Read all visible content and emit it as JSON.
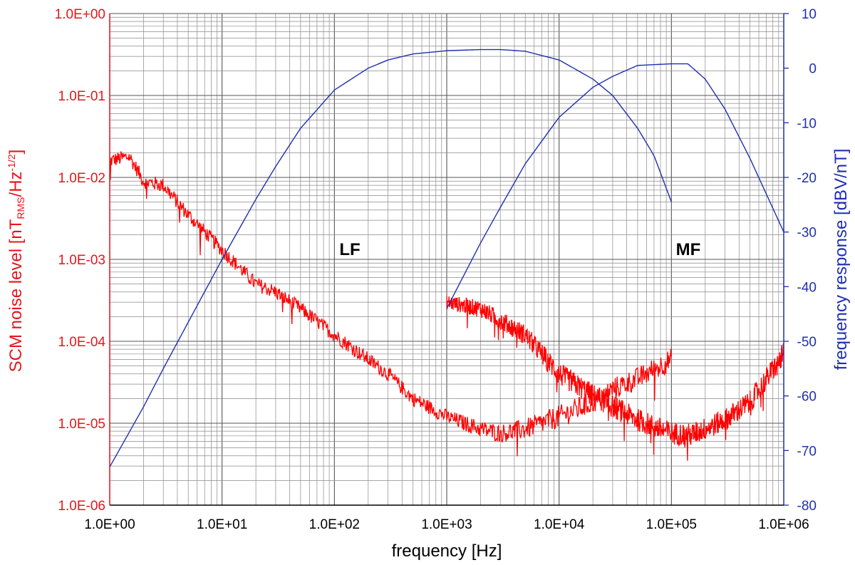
{
  "chart_data": {
    "type": "line",
    "xlabel": "frequency [Hz]",
    "x_scale": "log",
    "xlim": [
      1,
      1000000
    ],
    "x_ticks": [
      "1.0E+00",
      "1.0E+01",
      "1.0E+02",
      "1.0E+03",
      "1.0E+04",
      "1.0E+05",
      "1.0E+06"
    ],
    "ylabel_left": {
      "prefix": "SCM noise level [nT",
      "sub": "RMS",
      "mid": "/Hz",
      "sup": "-1/2",
      "suffix": "]"
    },
    "y_left_scale": "log",
    "ylim_left": [
      1e-06,
      1
    ],
    "y_left_ticks": [
      "1.0E+00",
      "1.0E-01",
      "1.0E-02",
      "1.0E-03",
      "1.0E-04",
      "1.0E-05",
      "1.0E-06"
    ],
    "ylabel_right": "frequency response [dBV/nT]",
    "ylim_right": [
      -80,
      10
    ],
    "y_right_ticks": [
      "10",
      "0",
      "-10",
      "-20",
      "-30",
      "-40",
      "-50",
      "-60",
      "-70",
      "-80"
    ],
    "grid": true,
    "colors": {
      "noise": "#ff0000",
      "response": "#1f2fb0",
      "left_axis": "#e8141c",
      "right_axis": "#1f2fb0"
    },
    "annotations": [
      {
        "text": "LF",
        "x": 150,
        "y_dB": -33
      },
      {
        "text": "MF",
        "x": 150000,
        "y_dB": -33
      }
    ],
    "series": [
      {
        "axis": "left",
        "points": [
          [
            1,
            0.016
          ],
          [
            1.5,
            0.018
          ],
          [
            2,
            0.009
          ],
          [
            3,
            0.008
          ],
          [
            5,
            0.0035
          ],
          [
            10,
            0.0013
          ],
          [
            20,
            0.0005
          ],
          [
            30,
            0.0004
          ],
          [
            50,
            0.00025
          ],
          [
            100,
            0.00012
          ],
          [
            200,
            6e-05
          ],
          [
            300,
            4e-05
          ],
          [
            500,
            2e-05
          ],
          [
            1000,
            1.2e-05
          ],
          [
            2000,
            8.5e-06
          ],
          [
            3000,
            7.5e-06
          ],
          [
            5000,
            8.5e-06
          ],
          [
            10000,
            1.2e-05
          ],
          [
            20000,
            1.8e-05
          ],
          [
            30000,
            2.6e-05
          ],
          [
            50000,
            3.5e-05
          ],
          [
            100000,
            6e-05
          ]
        ]
      },
      {
        "axis": "left",
        "points": [
          [
            1000,
            0.0003
          ],
          [
            2000,
            0.00025
          ],
          [
            3000,
            0.00018
          ],
          [
            5000,
            0.00012
          ],
          [
            10000,
            4e-05
          ],
          [
            20000,
            2.2e-05
          ],
          [
            30000,
            1.6e-05
          ],
          [
            50000,
            1.1e-05
          ],
          [
            100000,
            7.5e-06
          ],
          [
            150000,
            7.2e-06
          ],
          [
            300000,
            1.1e-05
          ],
          [
            500000,
            1.8e-05
          ],
          [
            1000000,
            7e-05
          ]
        ]
      },
      {
        "axis": "right",
        "points": [
          [
            1,
            -73
          ],
          [
            2,
            -62
          ],
          [
            3,
            -55
          ],
          [
            5,
            -46.5
          ],
          [
            10,
            -35
          ],
          [
            20,
            -24
          ],
          [
            30,
            -18
          ],
          [
            50,
            -11
          ],
          [
            100,
            -4
          ],
          [
            200,
            0
          ],
          [
            300,
            1.5
          ],
          [
            500,
            2.6
          ],
          [
            1000,
            3.2
          ],
          [
            2000,
            3.4
          ],
          [
            3000,
            3.4
          ],
          [
            5000,
            3.1
          ],
          [
            10000,
            1.5
          ],
          [
            20000,
            -2
          ],
          [
            30000,
            -5
          ],
          [
            50000,
            -11
          ],
          [
            70000,
            -16
          ],
          [
            100000,
            -24.5
          ]
        ]
      },
      {
        "axis": "right",
        "points": [
          [
            1000,
            -44
          ],
          [
            2000,
            -32
          ],
          [
            3000,
            -25.5
          ],
          [
            5000,
            -17.5
          ],
          [
            10000,
            -9
          ],
          [
            20000,
            -3.5
          ],
          [
            30000,
            -1.5
          ],
          [
            50000,
            0.5
          ],
          [
            100000,
            0.8
          ],
          [
            140000,
            0.8
          ],
          [
            200000,
            -2
          ],
          [
            300000,
            -7.5
          ],
          [
            500000,
            -16.5
          ],
          [
            1000000,
            -30
          ]
        ]
      }
    ]
  }
}
